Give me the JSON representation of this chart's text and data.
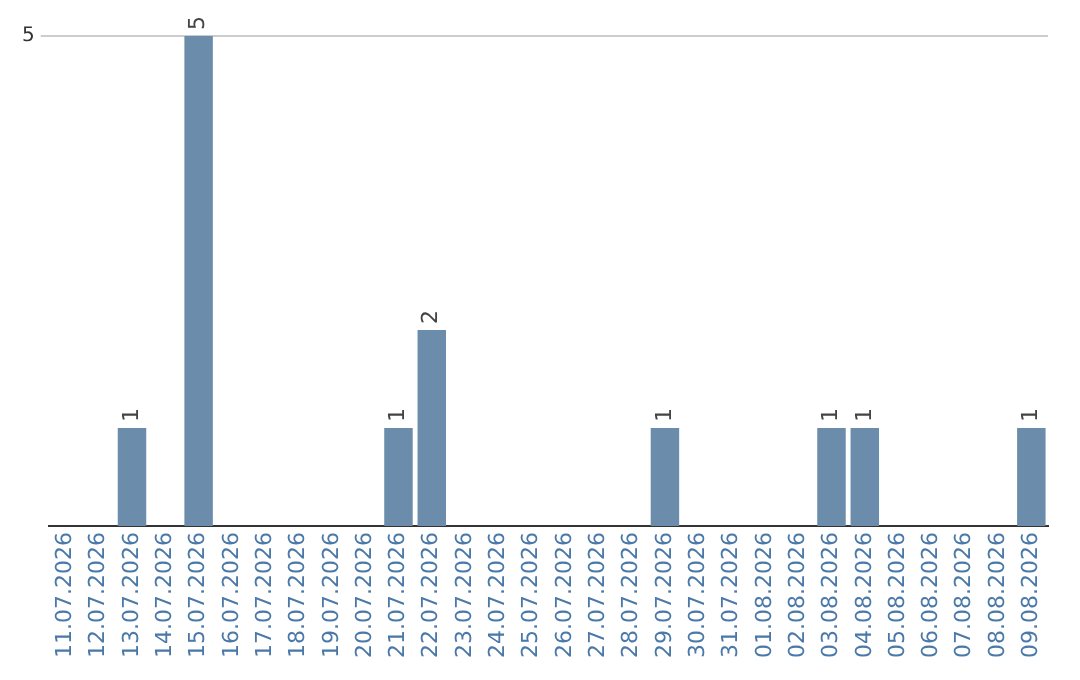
{
  "chart_data": {
    "type": "bar",
    "categories": [
      "11.07.2026",
      "12.07.2026",
      "13.07.2026",
      "14.07.2026",
      "15.07.2026",
      "16.07.2026",
      "17.07.2026",
      "18.07.2026",
      "19.07.2026",
      "20.07.2026",
      "21.07.2026",
      "22.07.2026",
      "23.07.2026",
      "24.07.2026",
      "25.07.2026",
      "26.07.2026",
      "27.07.2026",
      "28.07.2026",
      "29.07.2026",
      "30.07.2026",
      "31.07.2026",
      "01.08.2026",
      "02.08.2026",
      "03.08.2026",
      "04.08.2026",
      "05.08.2026",
      "06.08.2026",
      "07.08.2026",
      "08.08.2026",
      "09.08.2026"
    ],
    "values": [
      0,
      0,
      1,
      0,
      5,
      0,
      0,
      0,
      0,
      0,
      1,
      2,
      0,
      0,
      0,
      0,
      0,
      0,
      1,
      0,
      0,
      0,
      0,
      1,
      1,
      0,
      0,
      0,
      0,
      1
    ],
    "value_labels": [
      null,
      null,
      "1",
      null,
      "5",
      null,
      null,
      null,
      null,
      null,
      "1",
      "2",
      null,
      null,
      null,
      null,
      null,
      null,
      "1",
      null,
      null,
      null,
      null,
      "1",
      "1",
      null,
      null,
      null,
      null,
      "1"
    ],
    "color": "#6b8cab",
    "ylim": [
      0,
      5
    ],
    "yticks": [
      5
    ],
    "ref_lines": [
      {
        "axis": "y",
        "value": 5,
        "color": "#cccccc"
      }
    ]
  }
}
